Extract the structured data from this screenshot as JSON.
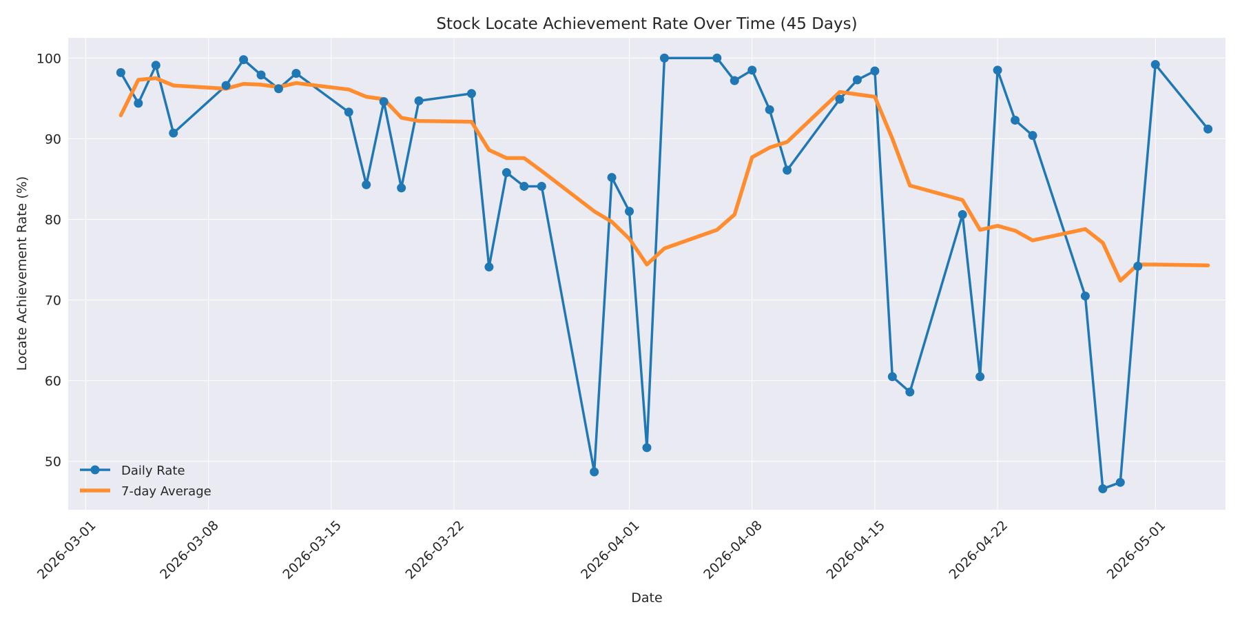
{
  "chart_data": {
    "type": "line",
    "title": "Stock Locate Achievement Rate Over Time (45 Days)",
    "xlabel": "Date",
    "ylabel": "Locate Achievement Rate (%)",
    "xlim": [
      "2026-02-28",
      "2026-05-05"
    ],
    "ylim": [
      44,
      102.5
    ],
    "yticks": [
      50,
      60,
      70,
      80,
      90,
      100
    ],
    "xticks": [
      "2026-03-01",
      "2026-03-08",
      "2026-03-15",
      "2026-03-22",
      "2026-04-01",
      "2026-04-08",
      "2026-04-15",
      "2026-04-22",
      "2026-05-01"
    ],
    "grid": true,
    "legend_position": "lower-left",
    "x": [
      "2026-03-03",
      "2026-03-04",
      "2026-03-05",
      "2026-03-06",
      "2026-03-09",
      "2026-03-10",
      "2026-03-11",
      "2026-03-12",
      "2026-03-13",
      "2026-03-16",
      "2026-03-17",
      "2026-03-18",
      "2026-03-19",
      "2026-03-20",
      "2026-03-23",
      "2026-03-24",
      "2026-03-25",
      "2026-03-26",
      "2026-03-27",
      "2026-03-30",
      "2026-03-31",
      "2026-04-01",
      "2026-04-02",
      "2026-04-03",
      "2026-04-06",
      "2026-04-07",
      "2026-04-08",
      "2026-04-09",
      "2026-04-10",
      "2026-04-13",
      "2026-04-14",
      "2026-04-15",
      "2026-04-16",
      "2026-04-17",
      "2026-04-20",
      "2026-04-21",
      "2026-04-22",
      "2026-04-23",
      "2026-04-24",
      "2026-04-27",
      "2026-04-28",
      "2026-04-29",
      "2026-04-30",
      "2026-05-01",
      "2026-05-04"
    ],
    "series": [
      {
        "name": "Daily Rate",
        "color": "#1f77b4",
        "marker": true,
        "values": [
          98.2,
          94.4,
          99.1,
          90.7,
          96.6,
          99.8,
          97.9,
          96.2,
          98.1,
          93.3,
          84.3,
          94.6,
          83.9,
          94.7,
          95.6,
          74.1,
          85.8,
          84.1,
          84.1,
          48.7,
          85.2,
          81.0,
          51.7,
          100.0,
          100.0,
          97.2,
          98.5,
          93.6,
          86.1,
          94.9,
          97.3,
          98.4,
          60.5,
          58.6,
          80.6,
          60.5,
          98.5,
          92.3,
          90.4,
          70.5,
          46.6,
          47.4,
          74.2,
          99.2,
          91.2
        ]
      },
      {
        "name": "7-day Average",
        "color": "#ff8c2e",
        "marker": false,
        "values": [
          92.9,
          97.3,
          97.5,
          96.6,
          96.2,
          96.8,
          96.7,
          96.4,
          96.9,
          96.1,
          95.2,
          94.9,
          92.6,
          92.2,
          92.1,
          88.6,
          87.6,
          87.6,
          86.0,
          81.0,
          79.7,
          77.6,
          74.4,
          76.4,
          78.7,
          80.6,
          87.7,
          88.9,
          89.6,
          95.8,
          95.5,
          95.2,
          90.0,
          84.2,
          82.4,
          78.7,
          79.2,
          78.6,
          77.4,
          78.8,
          77.1,
          72.4,
          74.4,
          74.4,
          74.3
        ]
      }
    ]
  }
}
